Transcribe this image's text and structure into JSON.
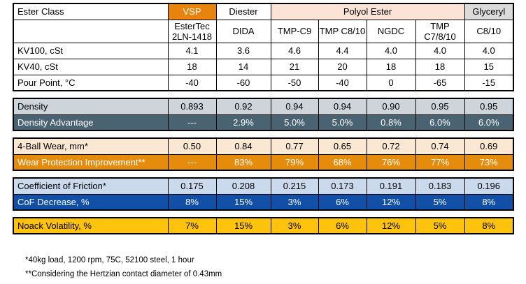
{
  "chart_data": {
    "type": "table",
    "header": {
      "corner_label": "Ester Class",
      "groups": [
        {
          "label": "VSP",
          "span": 1,
          "bg": "#E8830D",
          "fg": "#FFFFFF"
        },
        {
          "label": "Diester",
          "span": 1,
          "bg": "#FFFFFF",
          "fg": "#000000"
        },
        {
          "label": "Polyol Ester",
          "span": 4,
          "bg": "#FBE4D5",
          "fg": "#000000"
        },
        {
          "label": "Glyceryl",
          "span": 1,
          "bg": "#DBDBDB",
          "fg": "#000000"
        }
      ],
      "products": [
        "EsterTec 2LN-1418",
        "DIDA",
        "TMP-C9",
        "TMP C8/10",
        "NGDC",
        "TMP C7/8/10",
        "C8/10"
      ]
    },
    "blocks": [
      {
        "name": "viscosity-block",
        "rows": [
          {
            "label": "KV100, cSt",
            "values": [
              "4.1",
              "3.6",
              "4.6",
              "4.4",
              "4.0",
              "4.0",
              "4.0"
            ],
            "bg": "#FFFFFF",
            "fg": "#000000"
          },
          {
            "label": "KV40, cSt",
            "values": [
              "18",
              "14",
              "21",
              "20",
              "18",
              "18",
              "15"
            ],
            "bg": "#FFFFFF",
            "fg": "#000000"
          },
          {
            "label": "Pour Point, °C",
            "values": [
              "-40",
              "-60",
              "-50",
              "-40",
              "0",
              "-65",
              "-15"
            ],
            "bg": "#FFFFFF",
            "fg": "#000000"
          }
        ]
      },
      {
        "name": "density-block",
        "rows": [
          {
            "label": "Density",
            "values": [
              "0.893",
              "0.92",
              "0.94",
              "0.94",
              "0.90",
              "0.95",
              "0.95"
            ],
            "bg": "#CDD5DB",
            "fg": "#000000"
          },
          {
            "label": "Density Advantage",
            "values": [
              "---",
              "2.9%",
              "5.0%",
              "5.0%",
              "0.8%",
              "6.0%",
              "6.0%"
            ],
            "bg": "#4A6372",
            "fg": "#FFFFFF"
          }
        ]
      },
      {
        "name": "wear-block",
        "rows": [
          {
            "label": "4-Ball Wear, mm*",
            "values": [
              "0.50",
              "0.84",
              "0.77",
              "0.65",
              "0.72",
              "0.74",
              "0.69"
            ],
            "bg": "#FAE8D2",
            "fg": "#000000"
          },
          {
            "label": "Wear Protection Improvement**",
            "values": [
              "---",
              "83%",
              "79%",
              "68%",
              "76%",
              "77%",
              "73%"
            ],
            "bg": "#E68C0C",
            "fg": "#FFFFFF"
          }
        ]
      },
      {
        "name": "friction-block",
        "rows": [
          {
            "label": "Coefficient of Friction*",
            "values": [
              "0.175",
              "0.208",
              "0.215",
              "0.173",
              "0.191",
              "0.183",
              "0.196"
            ],
            "bg": "#CBD9ED",
            "fg": "#000000"
          },
          {
            "label": "CoF Decrease, %",
            "values": [
              "8%",
              "15%",
              "3%",
              "6%",
              "12%",
              "5%",
              "8%"
            ],
            "bg": "#1150A6",
            "fg": "#FFFFFF"
          }
        ]
      },
      {
        "name": "volatility-block",
        "rows": [
          {
            "label": "Noack Volatility, %",
            "values": [
              "7%",
              "15%",
              "3%",
              "6%",
              "12%",
              "5%",
              "8%"
            ],
            "bg": "#FFC20D",
            "fg": "#000000"
          }
        ]
      }
    ]
  },
  "footnotes": [
    "*40kg load, 1200 rpm, 75C, 52100 steel, 1 hour",
    "**Considering the Hertzian contact diameter of 0.43mm"
  ],
  "colors": {
    "vsp_orange": "#E8830D",
    "polyol_peach": "#FBE4D5",
    "glyceryl_gray": "#DBDBDB",
    "density_light": "#CDD5DB",
    "density_dark_slate": "#4A6372",
    "wear_tan": "#FAE8D2",
    "wear_orange": "#E68C0C",
    "friction_light_blue": "#CBD9ED",
    "friction_dark_blue": "#1150A6",
    "noack_yellow": "#FFC20D",
    "border": "#000000"
  }
}
